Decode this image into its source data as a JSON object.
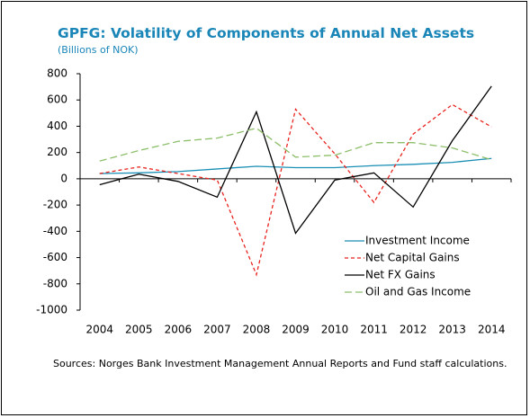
{
  "chart_data": {
    "type": "line",
    "title": "GPFG: Volatility of Components of Annual Net Assets",
    "subtitle": "(Billions of NOK)",
    "source": "Sources: Norges Bank Investment Management Annual Reports and Fund staff calculations.",
    "categories": [
      "2004",
      "2005",
      "2006",
      "2007",
      "2008",
      "2009",
      "2010",
      "2011",
      "2012",
      "2013",
      "2014"
    ],
    "series": [
      {
        "name": "Investment Income",
        "color": "#1a8fb5",
        "line_style": "solid",
        "values": [
          40,
          45,
          55,
          75,
          95,
          85,
          85,
          100,
          110,
          125,
          155
        ]
      },
      {
        "name": "Net Capital Gains",
        "color": "#e8231f",
        "line_style": "dashed",
        "values": [
          40,
          90,
          40,
          -10,
          -730,
          530,
          190,
          -180,
          340,
          565,
          395
        ]
      },
      {
        "name": "Net FX Gains",
        "color": "#000000",
        "line_style": "solid",
        "values": [
          -45,
          35,
          -20,
          -140,
          510,
          -415,
          -10,
          45,
          -215,
          290,
          705
        ]
      },
      {
        "name": "Oil and Gas Income",
        "color": "#8dbf6a",
        "line_style": "long-dashed",
        "values": [
          135,
          215,
          285,
          310,
          385,
          165,
          180,
          275,
          275,
          235,
          145
        ]
      }
    ],
    "ylim": [
      -1000,
      800
    ],
    "yticks": [
      -1000,
      -800,
      -600,
      -400,
      -200,
      0,
      200,
      400,
      600,
      800
    ],
    "legend": "lower right"
  }
}
